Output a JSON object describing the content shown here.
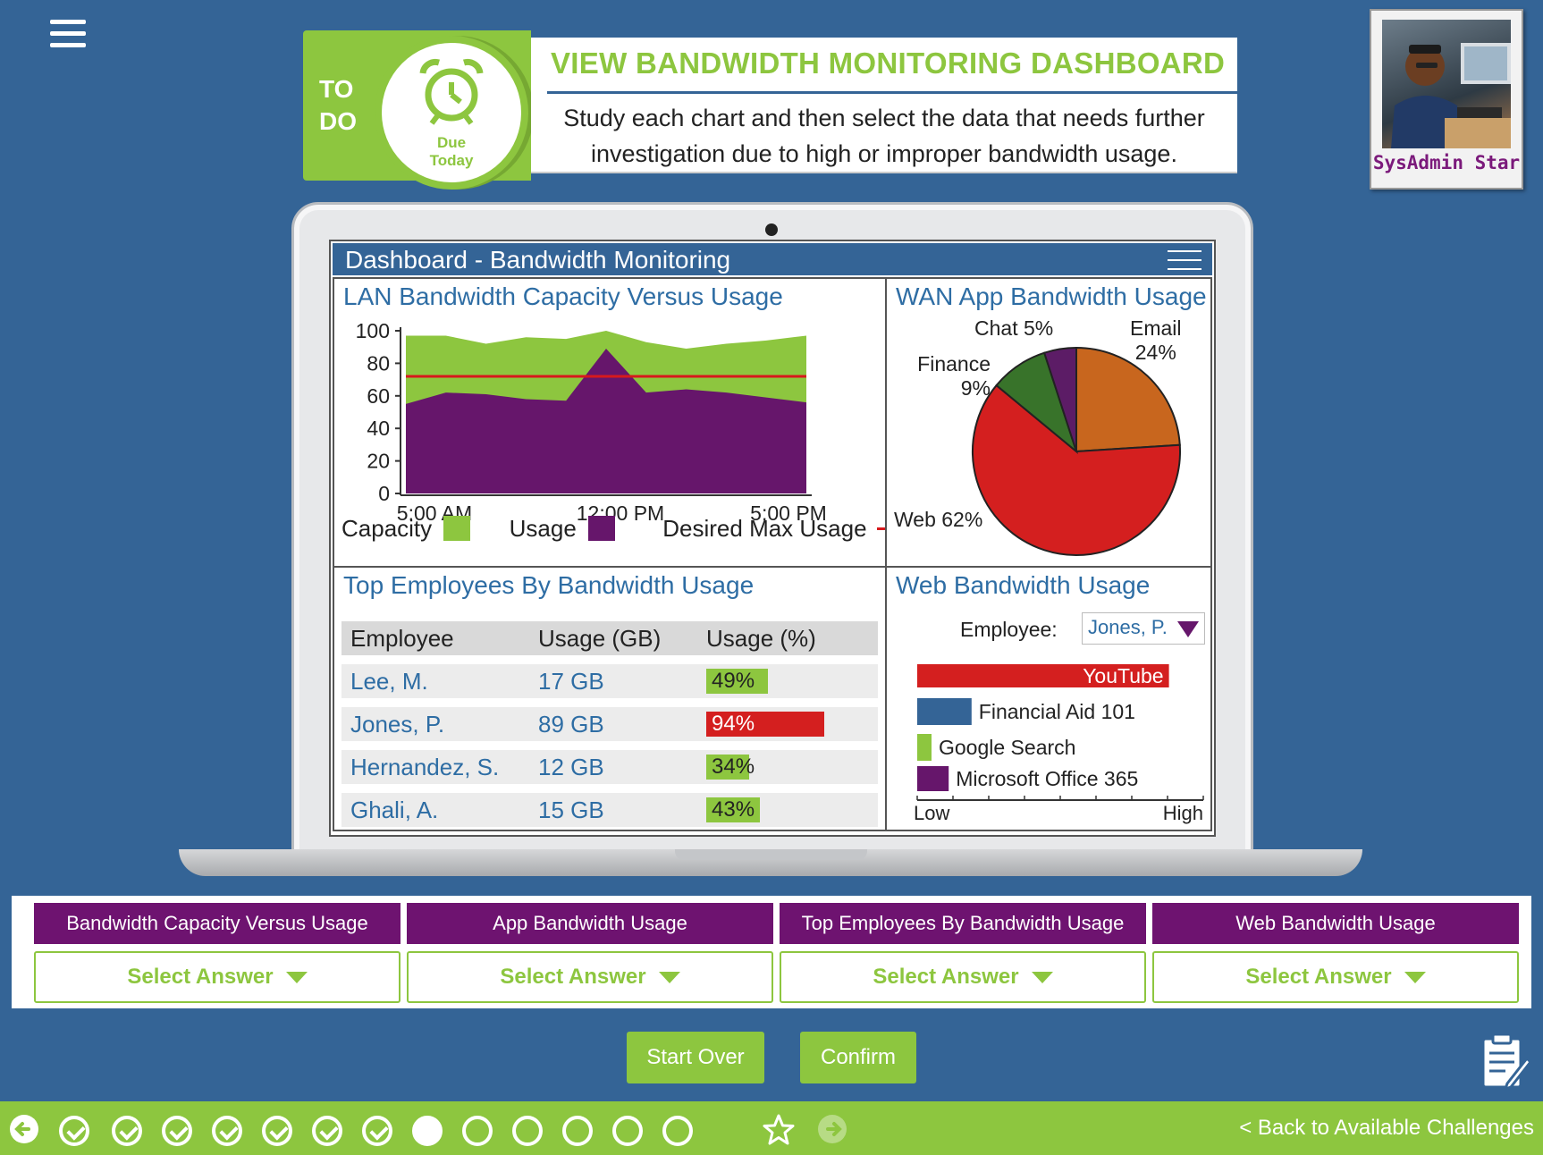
{
  "todo": {
    "label_line1": "TO",
    "label_line2": "DO",
    "due_line1": "Due",
    "due_line2": "Today",
    "title": "VIEW BANDWIDTH MONITORING DASHBOARD",
    "instruction_line1": "Study each chart and then select the data that needs further",
    "instruction_line2": "investigation due to high or improper bandwidth usage."
  },
  "avatar": {
    "name": "SysAdmin Star"
  },
  "dashboard": {
    "title": "Dashboard - Bandwidth Monitoring",
    "lan_title": "LAN Bandwidth Capacity Versus Usage",
    "wan_title": "WAN App Bandwidth Usage",
    "employees_title": "Top Employees By Bandwidth Usage",
    "web_title": "Web Bandwidth Usage"
  },
  "chart_data": [
    {
      "type": "area",
      "title": "LAN Bandwidth Capacity Versus Usage",
      "x_tick_labels": [
        "5:00 AM",
        "12:00 PM",
        "5:00 PM"
      ],
      "y_ticks": [
        0,
        20,
        40,
        60,
        80,
        100
      ],
      "ylim": [
        0,
        100
      ],
      "x": [
        0,
        1,
        2,
        3,
        4,
        5,
        6,
        7,
        8,
        9,
        10
      ],
      "series": [
        {
          "name": "Capacity",
          "color": "#8dc63f",
          "values": [
            97,
            97,
            92,
            96,
            95,
            100,
            93,
            89,
            92,
            94,
            97
          ]
        },
        {
          "name": "Usage",
          "color": "#66166b",
          "values": [
            55,
            62,
            61,
            58,
            57,
            89,
            62,
            64,
            62,
            59,
            56
          ]
        },
        {
          "name": "Desired Max Usage",
          "color": "#d7191c",
          "values": [
            72,
            72,
            72,
            72,
            72,
            72,
            72,
            72,
            72,
            72,
            72
          ]
        }
      ],
      "legend": [
        "Capacity",
        "Usage",
        "Desired Max Usage"
      ]
    },
    {
      "type": "pie",
      "title": "WAN App Bandwidth Usage",
      "slices": [
        {
          "label": "Email",
          "value": 24,
          "display": "24%",
          "color": "#c8661e"
        },
        {
          "label": "Web",
          "value": 62,
          "display": "62%",
          "color": "#d41f1f"
        },
        {
          "label": "Finance",
          "value": 9,
          "display": "9%",
          "color": "#38732a"
        },
        {
          "label": "Chat",
          "value": 5,
          "display": "5%",
          "color": "#5c1c66"
        }
      ]
    },
    {
      "type": "bar",
      "title": "Web Bandwidth Usage",
      "orientation": "horizontal",
      "categories": [
        "YouTube",
        "Financial Aid 101",
        "Google Search",
        "Microsoft Office 365"
      ],
      "values": [
        0.88,
        0.19,
        0.05,
        0.11
      ],
      "colors": [
        "#d41f1f",
        "#346496",
        "#8dc63f",
        "#66166b"
      ],
      "x_axis_low": "Low",
      "x_axis_high": "High"
    }
  ],
  "lan_legend": {
    "capacity": "Capacity",
    "usage": "Usage",
    "desired": "Desired Max Usage"
  },
  "pie_labels": {
    "chat": "Chat 5%",
    "email": "Email",
    "email_pct": "24%",
    "finance": "Finance",
    "finance_pct": "9%",
    "web": "Web 62%"
  },
  "employees_table": {
    "headers": [
      "Employee",
      "Usage (GB)",
      "Usage (%)"
    ],
    "rows": [
      {
        "name": "Lee, M.",
        "gb": "17 GB",
        "pct": "49%",
        "pct_value": 49,
        "color": "#8dc63f"
      },
      {
        "name": "Jones, P.",
        "gb": "89 GB",
        "pct": "94%",
        "pct_value": 94,
        "color": "#d41f1f"
      },
      {
        "name": "Hernandez, S.",
        "gb": "12 GB",
        "pct": "34%",
        "pct_value": 34,
        "color": "#8dc63f"
      },
      {
        "name": "Ghali, A.",
        "gb": "15 GB",
        "pct": "43%",
        "pct_value": 43,
        "color": "#8dc63f"
      }
    ]
  },
  "web_filter": {
    "label": "Employee:",
    "value": "Jones, P."
  },
  "answers": {
    "categories": [
      "Bandwidth Capacity Versus Usage",
      "App Bandwidth Usage",
      "Top Employees By Bandwidth Usage",
      "Web Bandwidth Usage"
    ],
    "select_label": "Select Answer"
  },
  "buttons": {
    "start_over": "Start Over",
    "confirm": "Confirm"
  },
  "nav": {
    "back_link": "< Back to Available Challenges",
    "progress": {
      "completed": 7,
      "current": 8,
      "total": 14
    }
  },
  "colors": {
    "background": "#346496",
    "accent_green": "#8dc63f",
    "purple": "#6e1370"
  }
}
